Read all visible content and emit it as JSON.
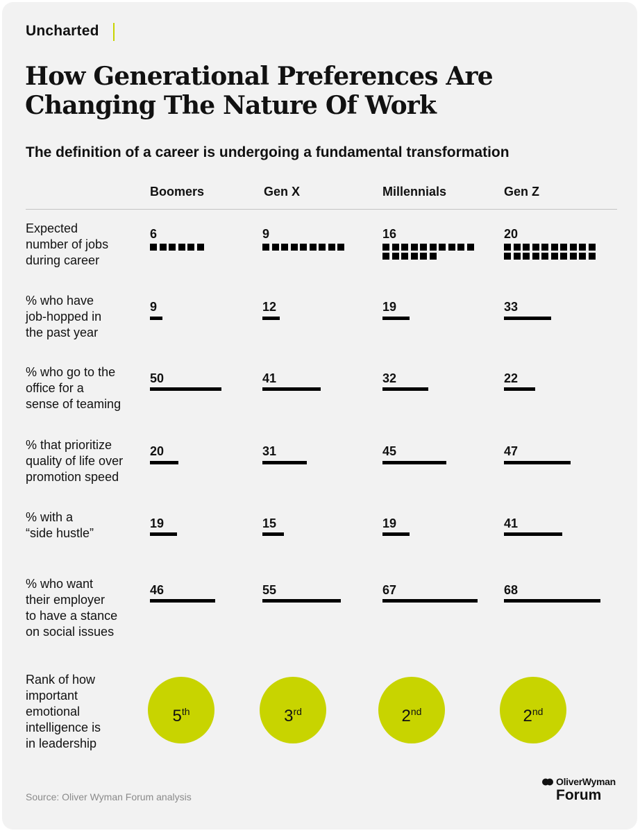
{
  "brand": "Uncharted",
  "title_line1": "How Generational Preferences Are",
  "title_line2": "Changing The Nature Of Work",
  "subtitle": "The definition of a career is undergoing a fundamental transformation",
  "columns": [
    "Boomers",
    "Gen X",
    "Millennials",
    "Gen Z"
  ],
  "rows": [
    {
      "label": [
        "Expected",
        "number of jobs",
        "during career"
      ],
      "values": [
        "6",
        "9",
        "16",
        "20"
      ]
    },
    {
      "label": [
        "% who have",
        "job-hopped in",
        "the past year"
      ],
      "values": [
        "9",
        "12",
        "19",
        "33"
      ]
    },
    {
      "label": [
        "% who go to the",
        "office for a",
        "sense of teaming"
      ],
      "values": [
        "50",
        "41",
        "32",
        "22"
      ]
    },
    {
      "label": [
        "% that prioritize",
        "quality of life over",
        "promotion speed"
      ],
      "values": [
        "20",
        "31",
        "45",
        "47"
      ]
    },
    {
      "label": [
        "% with a",
        "“side hustle”"
      ],
      "values": [
        "19",
        "15",
        "19",
        "41"
      ]
    },
    {
      "label": [
        "% who want",
        "their employer",
        "to have a stance",
        "on social issues"
      ],
      "values": [
        "46",
        "55",
        "67",
        "68"
      ]
    }
  ],
  "rank_row": {
    "label": [
      "Rank of how",
      "important",
      "emotional",
      "intelligence is",
      "in leadership"
    ],
    "ranks": [
      {
        "num": "5",
        "suffix": "th"
      },
      {
        "num": "3",
        "suffix": "rd"
      },
      {
        "num": "2",
        "suffix": "nd"
      },
      {
        "num": "2",
        "suffix": "nd"
      }
    ]
  },
  "chart_data": {
    "type": "table",
    "categories": [
      "Boomers",
      "Gen X",
      "Millennials",
      "Gen Z"
    ],
    "series": [
      {
        "name": "Expected number of jobs during career",
        "values": [
          6,
          9,
          16,
          20
        ]
      },
      {
        "name": "% who have job-hopped in the past year",
        "values": [
          9,
          12,
          19,
          33
        ]
      },
      {
        "name": "% who go to the office for a sense of teaming",
        "values": [
          50,
          41,
          32,
          22
        ]
      },
      {
        "name": "% that prioritize quality of life over promotion speed",
        "values": [
          20,
          31,
          45,
          47
        ]
      },
      {
        "name": "% with a “side hustle”",
        "values": [
          19,
          15,
          19,
          41
        ]
      },
      {
        "name": "% who want their employer to have a stance on social issues",
        "values": [
          46,
          55,
          67,
          68
        ]
      },
      {
        "name": "Rank of how important emotional intelligence is in leadership",
        "values": [
          5,
          3,
          2,
          2
        ]
      }
    ]
  },
  "source": "Source: Oliver Wyman Forum analysis",
  "logo_top": "OliverWyman",
  "logo_bottom": "Forum",
  "colors": {
    "accent": "#c8d400",
    "background": "#f2f2f2",
    "bar": "#000000",
    "source_text": "#8a8a8a"
  }
}
